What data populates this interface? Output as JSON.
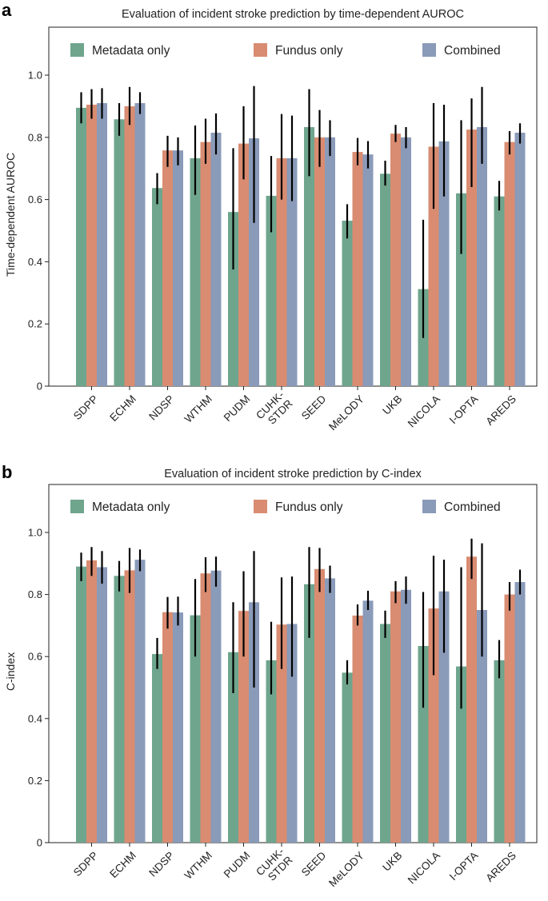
{
  "chart_data": [
    {
      "panel_label": "a",
      "type": "bar",
      "title": "Evaluation of incident stroke prediction by time-dependent AUROC",
      "ylabel": "Time-dependent AUROC",
      "xlabel": "",
      "ylim": [
        0,
        1.15
      ],
      "yticks": [
        "0",
        "0.2",
        "0.4",
        "0.6",
        "0.8",
        "1.0"
      ],
      "categories": [
        "SDPP",
        "ECHM",
        "NDSP",
        "WTHM",
        "PUDM",
        "CUHK-\nSTDR",
        "SEED",
        "MeLODY",
        "UKB",
        "NICOLA",
        "I-OPTA",
        "AREDS"
      ],
      "legend_position": "top",
      "series": [
        {
          "name": "Metadata only",
          "color": "#6fa58d",
          "values": [
            0.895,
            0.858,
            0.637,
            0.733,
            0.56,
            0.612,
            0.833,
            0.532,
            0.683,
            0.312,
            0.62,
            0.61
          ],
          "err_low": [
            0.845,
            0.805,
            0.585,
            0.615,
            0.375,
            0.495,
            0.675,
            0.475,
            0.645,
            0.155,
            0.425,
            0.565
          ],
          "err_high": [
            0.945,
            0.91,
            0.685,
            0.838,
            0.765,
            0.74,
            0.955,
            0.585,
            0.725,
            0.535,
            0.855,
            0.66
          ]
        },
        {
          "name": "Fundus only",
          "color": "#d98c71",
          "values": [
            0.905,
            0.9,
            0.758,
            0.785,
            0.78,
            0.733,
            0.8,
            0.753,
            0.812,
            0.77,
            0.825,
            0.785
          ],
          "err_low": [
            0.86,
            0.84,
            0.705,
            0.715,
            0.665,
            0.6,
            0.705,
            0.71,
            0.785,
            0.57,
            0.64,
            0.745
          ],
          "err_high": [
            0.955,
            0.962,
            0.805,
            0.86,
            0.9,
            0.875,
            0.888,
            0.798,
            0.84,
            0.91,
            0.925,
            0.82
          ]
        },
        {
          "name": "Combined",
          "color": "#8a9ab9",
          "values": [
            0.91,
            0.91,
            0.758,
            0.815,
            0.797,
            0.733,
            0.8,
            0.745,
            0.8,
            0.787,
            0.833,
            0.815
          ],
          "err_low": [
            0.86,
            0.875,
            0.71,
            0.745,
            0.525,
            0.595,
            0.74,
            0.7,
            0.765,
            0.61,
            0.715,
            0.78
          ],
          "err_high": [
            0.958,
            0.945,
            0.8,
            0.877,
            0.965,
            0.87,
            0.855,
            0.788,
            0.833,
            0.905,
            0.962,
            0.845
          ]
        }
      ]
    },
    {
      "panel_label": "b",
      "type": "bar",
      "title": "Evaluation of incident stroke prediction by C-index",
      "ylabel": "C-index",
      "xlabel": "",
      "ylim": [
        0,
        1.15
      ],
      "yticks": [
        "0",
        "0.2",
        "0.4",
        "0.6",
        "0.8",
        "1.0"
      ],
      "categories": [
        "SDPP",
        "ECHM",
        "NDSP",
        "WTHM",
        "PUDM",
        "CUHK-\nSTDR",
        "SEED",
        "MeLODY",
        "UKB",
        "NICOLA",
        "I-OPTA",
        "AREDS"
      ],
      "legend_position": "top",
      "series": [
        {
          "name": "Metadata only",
          "color": "#6fa58d",
          "values": [
            0.89,
            0.86,
            0.608,
            0.733,
            0.614,
            0.588,
            0.833,
            0.548,
            0.705,
            0.634,
            0.568,
            0.588
          ],
          "err_low": [
            0.843,
            0.81,
            0.56,
            0.6,
            0.482,
            0.478,
            0.66,
            0.51,
            0.66,
            0.435,
            0.432,
            0.53
          ],
          "err_high": [
            0.935,
            0.908,
            0.66,
            0.85,
            0.775,
            0.712,
            0.953,
            0.588,
            0.748,
            0.808,
            0.888,
            0.653
          ]
        },
        {
          "name": "Fundus only",
          "color": "#d98c71",
          "values": [
            0.91,
            0.878,
            0.743,
            0.868,
            0.747,
            0.703,
            0.882,
            0.732,
            0.81,
            0.755,
            0.922,
            0.8
          ],
          "err_low": [
            0.86,
            0.805,
            0.69,
            0.808,
            0.6,
            0.56,
            0.808,
            0.7,
            0.772,
            0.54,
            0.85,
            0.748
          ],
          "err_high": [
            0.953,
            0.95,
            0.792,
            0.92,
            0.875,
            0.855,
            0.95,
            0.768,
            0.843,
            0.925,
            0.98,
            0.84
          ]
        },
        {
          "name": "Combined",
          "color": "#8a9ab9",
          "values": [
            0.888,
            0.912,
            0.742,
            0.877,
            0.775,
            0.705,
            0.852,
            0.78,
            0.815,
            0.81,
            0.75,
            0.84
          ],
          "err_low": [
            0.835,
            0.875,
            0.7,
            0.825,
            0.5,
            0.535,
            0.805,
            0.75,
            0.77,
            0.612,
            0.6,
            0.8
          ],
          "err_high": [
            0.94,
            0.945,
            0.793,
            0.922,
            0.94,
            0.858,
            0.893,
            0.812,
            0.858,
            0.912,
            0.965,
            0.88
          ]
        }
      ]
    }
  ]
}
